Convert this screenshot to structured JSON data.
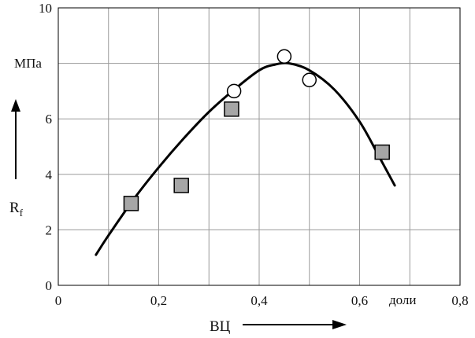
{
  "chart_data": {
    "type": "scatter",
    "xlim": [
      0,
      0.8
    ],
    "ylim": [
      0,
      10
    ],
    "x_ticks": [
      "0",
      "0,2",
      "0,4",
      "0,6",
      "0,8"
    ],
    "y_ticks": [
      "0",
      "2",
      "4",
      "6",
      "10"
    ],
    "x_unit": "доли",
    "y_unit": "МПа",
    "xlabel": "ВЦ",
    "ylabel": "R",
    "ylabel_sub": "f",
    "grid": true,
    "series": [
      {
        "marker": "square",
        "color": "#a6a6a6",
        "x": [
          0.145,
          0.245,
          0.345,
          0.645
        ],
        "y": [
          2.95,
          3.6,
          6.35,
          4.8
        ]
      },
      {
        "marker": "circle",
        "color": "#ffffff",
        "x": [
          0.35,
          0.45,
          0.5
        ],
        "y": [
          7.0,
          8.25,
          7.4
        ]
      },
      {
        "marker": "line",
        "color": "#000000",
        "x": [
          0.075,
          0.1,
          0.15,
          0.2,
          0.25,
          0.3,
          0.35,
          0.4,
          0.43,
          0.46,
          0.5,
          0.55,
          0.6,
          0.64,
          0.67
        ],
        "y": [
          1.1,
          1.8,
          3.1,
          4.25,
          5.3,
          6.25,
          7.05,
          7.75,
          7.95,
          8.0,
          7.75,
          7.05,
          5.9,
          4.6,
          3.6
        ]
      }
    ]
  }
}
